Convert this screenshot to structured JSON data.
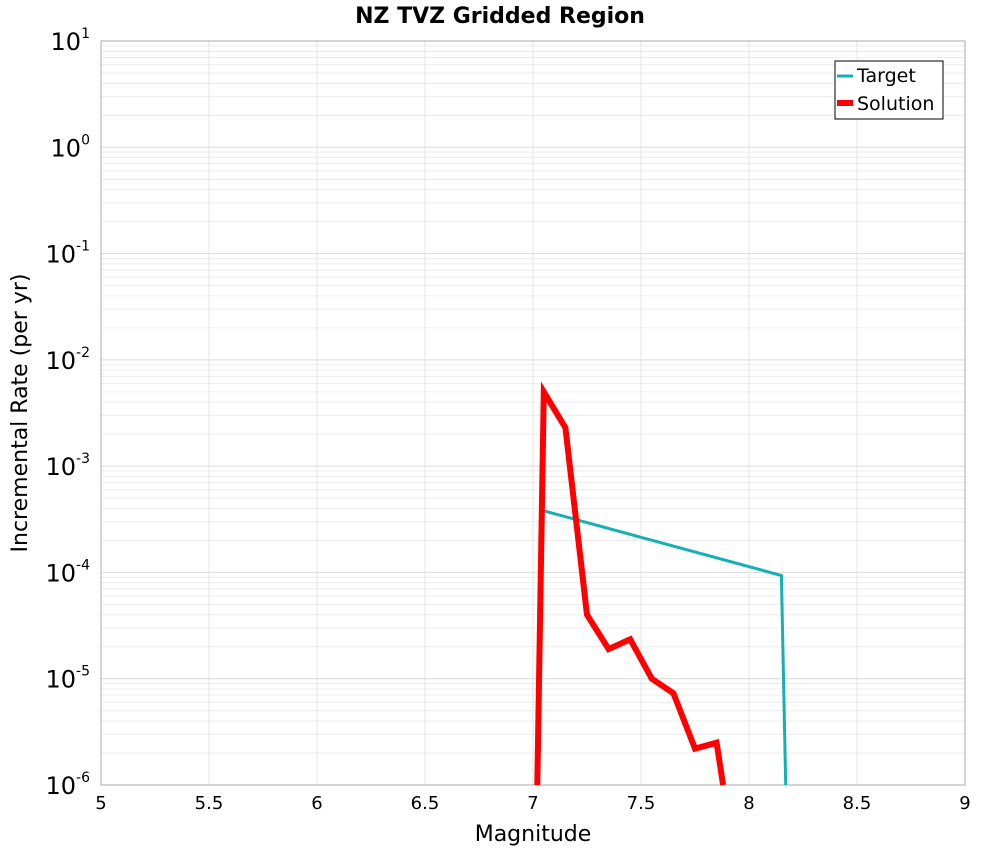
{
  "chart_data": {
    "type": "line",
    "title": "NZ TVZ Gridded Region",
    "xlabel": "Magnitude",
    "ylabel": "Incremental Rate (per yr)",
    "xlim": [
      5,
      9
    ],
    "ylim": [
      1e-06,
      10
    ],
    "yscale": "log",
    "xticks": [
      "5",
      "5.5",
      "6",
      "6.5",
      "7",
      "7.5",
      "8",
      "8.5",
      "9"
    ],
    "yticks": [
      {
        "base": "10",
        "exp": "-6"
      },
      {
        "base": "10",
        "exp": "-5"
      },
      {
        "base": "10",
        "exp": "-4"
      },
      {
        "base": "10",
        "exp": "-3"
      },
      {
        "base": "10",
        "exp": "-2"
      },
      {
        "base": "10",
        "exp": "-1"
      },
      {
        "base": "10",
        "exp": "0"
      },
      {
        "base": "10",
        "exp": "1"
      }
    ],
    "grid": true,
    "legend_position": "top-right",
    "series": [
      {
        "name": "Target",
        "color": "#14b1b4",
        "points": [
          [
            7.05,
            0.00038
          ],
          [
            8.15,
            9.35e-05
          ],
          [
            8.17,
            1e-06
          ]
        ]
      },
      {
        "name": "Solution",
        "color": "#ff0000",
        "points": [
          [
            7.02,
            1e-06
          ],
          [
            7.05,
            0.005
          ],
          [
            7.15,
            0.0023
          ],
          [
            7.25,
            4e-05
          ],
          [
            7.35,
            1.9e-05
          ],
          [
            7.45,
            2.35e-05
          ],
          [
            7.55,
            1e-05
          ],
          [
            7.65,
            7.3e-06
          ],
          [
            7.75,
            2.2e-06
          ],
          [
            7.85,
            2.5e-06
          ],
          [
            7.88,
            1e-06
          ]
        ]
      }
    ]
  }
}
